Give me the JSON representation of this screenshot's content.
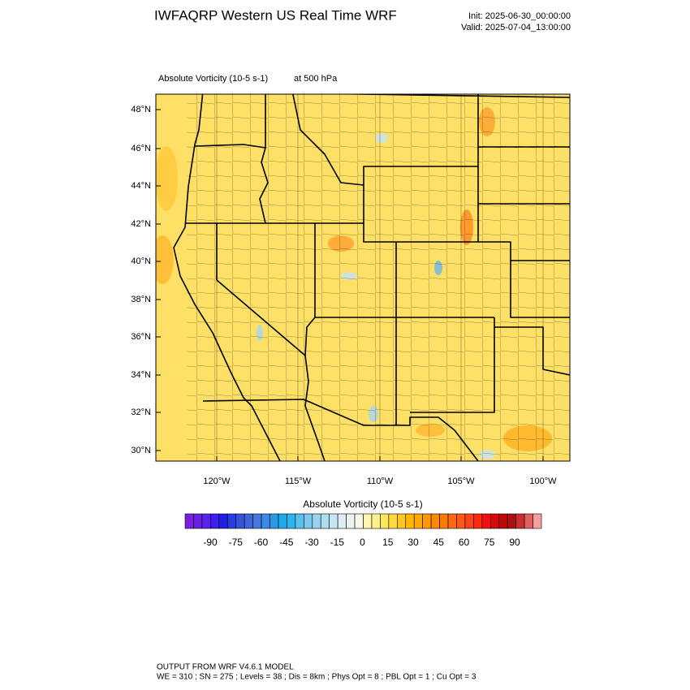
{
  "header": {
    "title": "IWFAQRP Western US Real Time WRF",
    "init": "Init: 2025-06-30_00:00:00",
    "valid": "Valid: 2025-07-04_13:00:00"
  },
  "plot": {
    "field": "Absolute Vorticity   (10-5 s-1)",
    "level": "at   500 hPa"
  },
  "map": {
    "lat_labels": [
      "48°N",
      "46°N",
      "44°N",
      "42°N",
      "40°N",
      "38°N",
      "36°N",
      "34°N",
      "32°N",
      "30°N"
    ],
    "lon_labels": [
      "120°W",
      "115°W",
      "110°W",
      "105°W",
      "100°W"
    ]
  },
  "colorbar": {
    "title": "Absolute Vorticity  (10-5 s-1)",
    "ticks": [
      -90,
      -75,
      -60,
      -45,
      -30,
      -15,
      0,
      15,
      30,
      45,
      60,
      75,
      90
    ],
    "colors": [
      "#7e1fe0",
      "#6a1fe6",
      "#5a22ee",
      "#3b1ff0",
      "#1f1fe8",
      "#2a3be0",
      "#3552db",
      "#3e66dc",
      "#4579e0",
      "#3a8ae6",
      "#2a9ae8",
      "#1caaea",
      "#2cb5ec",
      "#5ac0ec",
      "#7ec9ec",
      "#98d2ee",
      "#b0dcf0",
      "#c8e6f2",
      "#dceef4",
      "#ecf4f0",
      "#f6f8e8",
      "#fff4b0",
      "#fff08a",
      "#ffe660",
      "#ffd83a",
      "#ffc81e",
      "#ffb800",
      "#ffa800",
      "#ff9800",
      "#ff8a00",
      "#ff7a00",
      "#ff6a10",
      "#ff5a18",
      "#ff4418",
      "#ff2a10",
      "#f01010",
      "#d80a0a",
      "#c00808",
      "#b01010",
      "#c83030",
      "#e06060",
      "#f8a0a0"
    ]
  },
  "footer": {
    "lines": [
      "OUTPUT FROM WRF V4.6.1 MODEL",
      "WE = 310 ; SN = 275 ; Levels = 38 ; Dis = 8km ; Phys Opt = 8 ; PBL Opt = 1 ; Cu Opt = 3"
    ]
  }
}
